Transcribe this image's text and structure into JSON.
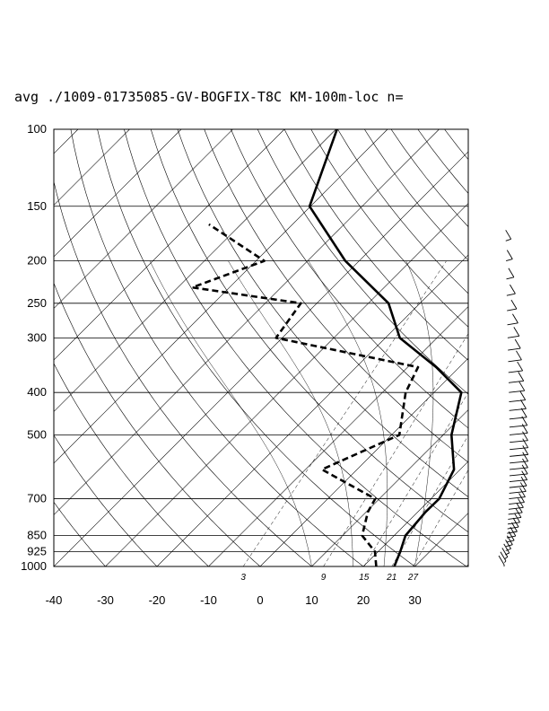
{
  "chart_data": {
    "type": "line",
    "title": "avg ./1009-01735085-GV-BOGFIX-T8C KM-100m-loc n=",
    "y_axis": {
      "scale": "log",
      "range": [
        1000,
        100
      ],
      "ticks": [
        100,
        150,
        200,
        250,
        300,
        400,
        500,
        700,
        850,
        925,
        1000
      ],
      "tick_labels": [
        "100",
        "150",
        "200",
        "250",
        "300",
        "400",
        "500",
        "700",
        "850",
        "925",
        "1000"
      ]
    },
    "x_axis": {
      "range": [
        -40,
        40
      ],
      "ticks": [
        -40,
        -30,
        -20,
        -10,
        0,
        10,
        20,
        30
      ],
      "tick_labels": [
        "-40",
        "-30",
        "-20",
        "-10",
        "0",
        "10",
        "20",
        "30"
      ],
      "skewed": true
    },
    "mixing_ratio_labels": [
      "3",
      "9",
      "15",
      "21",
      "27"
    ],
    "mixing_ratio_values": [
      3,
      9,
      15,
      21,
      27
    ],
    "grid": true,
    "series": [
      {
        "style": "solid",
        "x": [
          26.0,
          24.3,
          22.2,
          21.5,
          21.6,
          18.8,
          11.6,
          5.3,
          -4.5,
          -17.2,
          -26.1,
          -42.7,
          -60.2,
          -69.8
        ],
        "y": [
          1000,
          925,
          850,
          750,
          700,
          600,
          500,
          400,
          350,
          300,
          250,
          200,
          150,
          100
        ]
      },
      {
        "style": "dashed",
        "x": [
          22.5,
          19.4,
          13.8,
          10.3,
          9.2,
          -6.8,
          1.5,
          -5.5,
          -8.0,
          -41.2,
          -43.1,
          -67.2,
          -58.4,
          -76.2
        ],
        "y": [
          1000,
          925,
          850,
          750,
          700,
          600,
          500,
          400,
          350,
          300,
          250,
          230,
          200,
          165
        ]
      }
    ],
    "wind_barbs": "tall column of wind barbs on right side from 165 hPa to 1000 hPa"
  }
}
